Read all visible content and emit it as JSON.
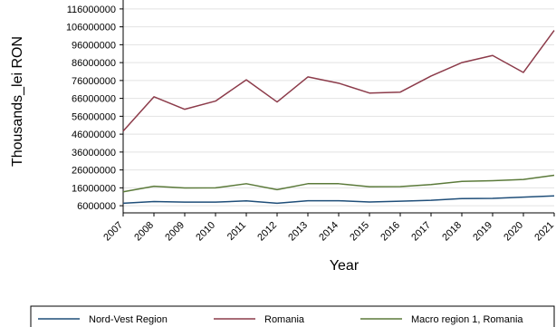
{
  "chart_data": {
    "type": "line",
    "title": "",
    "xlabel": "Year",
    "ylabel": "Thousands_lei RON",
    "x": [
      "2007",
      "2008",
      "2009",
      "2010",
      "2011",
      "2012",
      "2013",
      "2014",
      "2015",
      "2016",
      "2017",
      "2018",
      "2019",
      "2020",
      "2021"
    ],
    "ylim": [
      2000000,
      121000000
    ],
    "yticks": [
      6000000,
      16000000,
      26000000,
      36000000,
      46000000,
      56000000,
      66000000,
      76000000,
      86000000,
      96000000,
      106000000,
      116000000
    ],
    "ytick_labels": [
      "6000000",
      "16000000",
      "26000000",
      "36000000",
      "46000000",
      "56000000",
      "66000000",
      "76000000",
      "86000000",
      "96000000",
      "106000000",
      "116000000"
    ],
    "grid": true,
    "legend_position": "bottom",
    "series": [
      {
        "name": "Nord-Vest Region",
        "color": "#1f4e79",
        "values": [
          7400000,
          8300000,
          8000000,
          8000000,
          8700000,
          7400000,
          8800000,
          8800000,
          8100000,
          8500000,
          9000000,
          10000000,
          10100000,
          10800000,
          11500000
        ]
      },
      {
        "name": "Romania",
        "color": "#8c3b4a",
        "values": [
          47700000,
          66900000,
          59900000,
          64500000,
          76400000,
          64000000,
          78000000,
          74500000,
          69000000,
          69500000,
          78500000,
          86000000,
          90000000,
          80500000,
          104000000
        ]
      },
      {
        "name": "Macro region 1, Romania",
        "color": "#5b7a3a",
        "values": [
          13800000,
          16900000,
          15900000,
          16000000,
          18300000,
          15000000,
          18300000,
          18300000,
          16600000,
          16700000,
          17800000,
          19600000,
          20000000,
          20700000,
          23000000
        ]
      }
    ]
  }
}
